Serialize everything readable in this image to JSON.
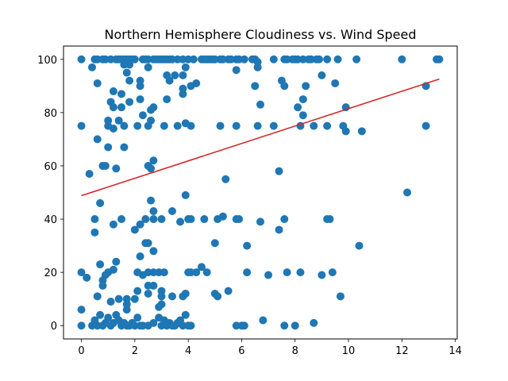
{
  "chart_data": {
    "type": "scatter",
    "title": "Northern Hemisphere Cloudiness vs. Wind Speed",
    "xlabel": "",
    "ylabel": "",
    "xlim": [
      -0.67,
      14.07
    ],
    "ylim": [
      -5,
      105
    ],
    "xticks": [
      0,
      2,
      4,
      6,
      8,
      10,
      12,
      14
    ],
    "yticks": [
      0,
      20,
      40,
      60,
      80,
      100
    ],
    "grid": false,
    "point_color": "#1f77b4",
    "line_color": "#d62728",
    "regression_line": {
      "x": [
        0,
        13.4
      ],
      "y": [
        48.8,
        92.6
      ]
    },
    "points": [
      [
        0,
        100
      ],
      [
        0.5,
        100
      ],
      [
        0.6,
        100
      ],
      [
        0.8,
        100
      ],
      [
        0.9,
        100
      ],
      [
        1.1,
        100
      ],
      [
        1.3,
        100
      ],
      [
        1.4,
        100
      ],
      [
        1.5,
        100
      ],
      [
        1.6,
        100
      ],
      [
        1.7,
        100
      ],
      [
        1.8,
        100
      ],
      [
        1.9,
        100
      ],
      [
        2.0,
        100
      ],
      [
        2.3,
        100
      ],
      [
        2.4,
        100
      ],
      [
        2.5,
        100
      ],
      [
        2.7,
        100
      ],
      [
        2.8,
        100
      ],
      [
        2.9,
        100
      ],
      [
        3.0,
        100
      ],
      [
        3.1,
        100
      ],
      [
        3.2,
        100
      ],
      [
        3.3,
        100
      ],
      [
        3.4,
        100
      ],
      [
        3.6,
        100
      ],
      [
        3.8,
        100
      ],
      [
        4.0,
        100
      ],
      [
        4.2,
        100
      ],
      [
        4.5,
        100
      ],
      [
        4.6,
        100
      ],
      [
        4.7,
        100
      ],
      [
        4.8,
        100
      ],
      [
        4.9,
        100
      ],
      [
        5.0,
        100
      ],
      [
        5.2,
        100
      ],
      [
        5.3,
        100
      ],
      [
        5.5,
        100
      ],
      [
        5.6,
        100
      ],
      [
        5.8,
        100
      ],
      [
        5.9,
        100
      ],
      [
        6.1,
        100
      ],
      [
        6.4,
        100
      ],
      [
        6.5,
        100
      ],
      [
        7.2,
        100
      ],
      [
        7.6,
        100
      ],
      [
        7.7,
        100
      ],
      [
        7.9,
        100
      ],
      [
        8.0,
        100
      ],
      [
        8.1,
        100
      ],
      [
        8.3,
        100
      ],
      [
        8.5,
        100
      ],
      [
        8.6,
        100
      ],
      [
        8.8,
        100
      ],
      [
        8.9,
        100
      ],
      [
        9.2,
        100
      ],
      [
        9.6,
        100
      ],
      [
        10.3,
        100
      ],
      [
        12.0,
        100
      ],
      [
        13.3,
        100
      ],
      [
        13.4,
        100
      ],
      [
        1.6,
        98
      ],
      [
        1.8,
        98
      ],
      [
        2.5,
        97
      ],
      [
        3.9,
        97
      ],
      [
        5.8,
        96
      ],
      [
        6.6,
        97
      ],
      [
        6.6,
        99
      ],
      [
        0.4,
        97
      ],
      [
        1.7,
        95
      ],
      [
        3.2,
        94
      ],
      [
        3.5,
        94
      ],
      [
        3.8,
        94
      ],
      [
        9.0,
        94
      ],
      [
        1.8,
        92
      ],
      [
        2.2,
        92
      ],
      [
        3.3,
        92
      ],
      [
        7.5,
        92
      ],
      [
        2.2,
        90
      ],
      [
        4.1,
        90
      ],
      [
        4.3,
        91
      ],
      [
        6.5,
        90
      ],
      [
        7.6,
        90
      ],
      [
        8.4,
        90
      ],
      [
        9.5,
        91
      ],
      [
        0.6,
        91
      ],
      [
        1.2,
        88
      ],
      [
        1.5,
        87
      ],
      [
        3.8,
        87
      ],
      [
        3.8,
        89
      ],
      [
        2.2,
        85
      ],
      [
        3.2,
        85
      ],
      [
        1.1,
        84
      ],
      [
        1.8,
        84
      ],
      [
        1.2,
        82
      ],
      [
        1.5,
        82
      ],
      [
        2.6,
        81
      ],
      [
        2.7,
        82
      ],
      [
        6.7,
        83
      ],
      [
        8.1,
        82
      ],
      [
        8.3,
        85
      ],
      [
        9.9,
        82
      ],
      [
        2.3,
        79
      ],
      [
        8.3,
        79
      ],
      [
        1.0,
        77
      ],
      [
        1.4,
        77
      ],
      [
        2.6,
        77
      ],
      [
        1.0,
        75
      ],
      [
        1.2,
        74
      ],
      [
        1.6,
        75
      ],
      [
        2.1,
        75
      ],
      [
        2.5,
        75
      ],
      [
        3.1,
        75
      ],
      [
        3.6,
        75
      ],
      [
        3.9,
        76
      ],
      [
        4.1,
        75
      ],
      [
        5.2,
        75
      ],
      [
        5.8,
        75
      ],
      [
        6.6,
        75
      ],
      [
        7.2,
        75
      ],
      [
        8.2,
        75
      ],
      [
        8.7,
        75
      ],
      [
        9.2,
        75
      ],
      [
        9.8,
        75
      ],
      [
        9.9,
        73
      ],
      [
        10.5,
        73
      ],
      [
        12.9,
        75
      ],
      [
        12.9,
        90
      ],
      [
        0,
        75
      ],
      [
        0.6,
        70
      ],
      [
        1.0,
        67
      ],
      [
        1.6,
        67
      ],
      [
        0.9,
        60
      ],
      [
        0.8,
        60
      ],
      [
        1.3,
        59
      ],
      [
        0.3,
        57
      ],
      [
        7.4,
        58
      ],
      [
        2.5,
        60
      ],
      [
        2.6,
        59
      ],
      [
        2.7,
        62
      ],
      [
        0.7,
        46
      ],
      [
        1.2,
        38
      ],
      [
        0.5,
        40
      ],
      [
        0.5,
        35
      ],
      [
        1.5,
        40
      ],
      [
        2.0,
        36
      ],
      [
        2.2,
        38
      ],
      [
        2.4,
        40
      ],
      [
        2.6,
        47
      ],
      [
        2.7,
        43
      ],
      [
        2.7,
        40
      ],
      [
        3.0,
        40
      ],
      [
        3.4,
        43
      ],
      [
        3.7,
        39
      ],
      [
        4.0,
        40
      ],
      [
        4.1,
        40
      ],
      [
        4.6,
        40
      ],
      [
        5.1,
        40
      ],
      [
        5.3,
        41
      ],
      [
        5.8,
        40
      ],
      [
        5.9,
        40
      ],
      [
        6.7,
        39
      ],
      [
        7.4,
        36
      ],
      [
        7.6,
        40
      ],
      [
        9.2,
        40
      ],
      [
        9.3,
        40
      ],
      [
        3.9,
        49
      ],
      [
        5.4,
        55
      ],
      [
        12.2,
        50
      ],
      [
        2.4,
        31
      ],
      [
        2.5,
        31
      ],
      [
        2.7,
        28
      ],
      [
        5.0,
        31
      ],
      [
        6.2,
        30
      ],
      [
        10.4,
        30
      ],
      [
        2.2,
        26
      ],
      [
        1.3,
        24
      ],
      [
        0.7,
        23
      ],
      [
        4.5,
        22
      ],
      [
        4.3,
        20
      ],
      [
        4.0,
        20
      ],
      [
        4.1,
        20
      ],
      [
        3.1,
        20
      ],
      [
        2.9,
        20
      ],
      [
        2.5,
        20
      ],
      [
        2.1,
        20
      ],
      [
        2.7,
        20
      ],
      [
        2.3,
        19
      ],
      [
        1.0,
        20
      ],
      [
        1.2,
        21
      ],
      [
        0.9,
        19
      ],
      [
        0.8,
        17
      ],
      [
        0.8,
        15
      ],
      [
        0.2,
        18
      ],
      [
        0,
        20
      ],
      [
        4.7,
        20
      ],
      [
        6.2,
        20
      ],
      [
        7.0,
        19
      ],
      [
        7.7,
        20
      ],
      [
        8.2,
        20
      ],
      [
        9.0,
        19
      ],
      [
        9.4,
        20
      ],
      [
        2.5,
        15
      ],
      [
        2.7,
        15
      ],
      [
        2.1,
        13
      ],
      [
        2.5,
        12
      ],
      [
        3.4,
        11
      ],
      [
        3.0,
        13
      ],
      [
        3.0,
        11
      ],
      [
        5.0,
        12
      ],
      [
        5.1,
        11
      ],
      [
        5.5,
        13
      ],
      [
        0.6,
        11
      ],
      [
        1.1,
        9
      ],
      [
        1.4,
        10
      ],
      [
        1.7,
        10
      ],
      [
        1.7,
        8
      ],
      [
        1.7,
        6
      ],
      [
        2.0,
        10
      ],
      [
        3.0,
        8
      ],
      [
        2.9,
        7
      ],
      [
        3.8,
        11
      ],
      [
        3.9,
        12
      ],
      [
        9.7,
        11
      ],
      [
        0,
        6
      ],
      [
        0,
        0
      ],
      [
        0.4,
        0
      ],
      [
        0.5,
        2
      ],
      [
        0.6,
        0
      ],
      [
        0.7,
        4
      ],
      [
        0.8,
        0
      ],
      [
        0.9,
        1
      ],
      [
        1.0,
        3
      ],
      [
        1.1,
        0
      ],
      [
        1.2,
        1
      ],
      [
        1.3,
        4
      ],
      [
        1.4,
        2
      ],
      [
        1.5,
        0
      ],
      [
        1.6,
        1
      ],
      [
        1.7,
        0
      ],
      [
        1.8,
        0
      ],
      [
        1.9,
        1
      ],
      [
        2.0,
        0
      ],
      [
        2.1,
        3
      ],
      [
        2.2,
        0
      ],
      [
        2.3,
        0
      ],
      [
        2.5,
        0
      ],
      [
        2.7,
        1
      ],
      [
        2.9,
        3
      ],
      [
        3.0,
        0
      ],
      [
        3.1,
        2
      ],
      [
        3.2,
        0
      ],
      [
        3.3,
        1
      ],
      [
        3.4,
        0
      ],
      [
        3.5,
        0
      ],
      [
        3.6,
        1
      ],
      [
        3.7,
        2
      ],
      [
        3.8,
        0
      ],
      [
        3.9,
        4
      ],
      [
        4.0,
        0
      ],
      [
        4.1,
        0
      ],
      [
        5.8,
        0
      ],
      [
        6.0,
        0
      ],
      [
        6.1,
        0
      ],
      [
        6.8,
        2
      ],
      [
        7.6,
        0
      ],
      [
        8.0,
        0
      ],
      [
        8.7,
        1
      ]
    ]
  }
}
